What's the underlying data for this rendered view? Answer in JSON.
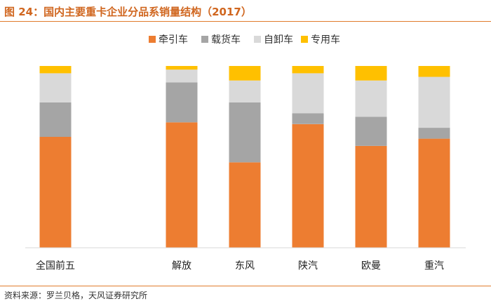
{
  "figure": {
    "title": "图 24：国内主要重卡企业分品系销量结构（2017）",
    "source": "资料来源：罗兰贝格，天风证券研究所"
  },
  "colors": {
    "accent": "#e07b2c",
    "series": [
      "#ed7d31",
      "#a5a5a5",
      "#d9d9d9",
      "#ffc000"
    ]
  },
  "chart_data": {
    "type": "bar",
    "stacked": true,
    "percent": true,
    "title": "",
    "xlabel": "",
    "ylabel": "",
    "ylim": [
      0,
      100
    ],
    "grid": false,
    "legend_position": "top-center",
    "categories": [
      "全国前五",
      "",
      "解放",
      "东风",
      "陕汽",
      "欧曼",
      "重汽"
    ],
    "series": [
      {
        "name": "牵引车",
        "color": "#ed7d31",
        "values": [
          61,
          null,
          69,
          47,
          68,
          56,
          60
        ]
      },
      {
        "name": "载货车",
        "color": "#a5a5a5",
        "values": [
          19,
          null,
          22,
          33,
          6,
          16,
          6
        ]
      },
      {
        "name": "自卸车",
        "color": "#d9d9d9",
        "values": [
          16,
          null,
          7,
          12,
          22,
          20,
          28
        ]
      },
      {
        "name": "专用车",
        "color": "#ffc000",
        "values": [
          4,
          null,
          2,
          8,
          4,
          8,
          6
        ]
      }
    ]
  }
}
